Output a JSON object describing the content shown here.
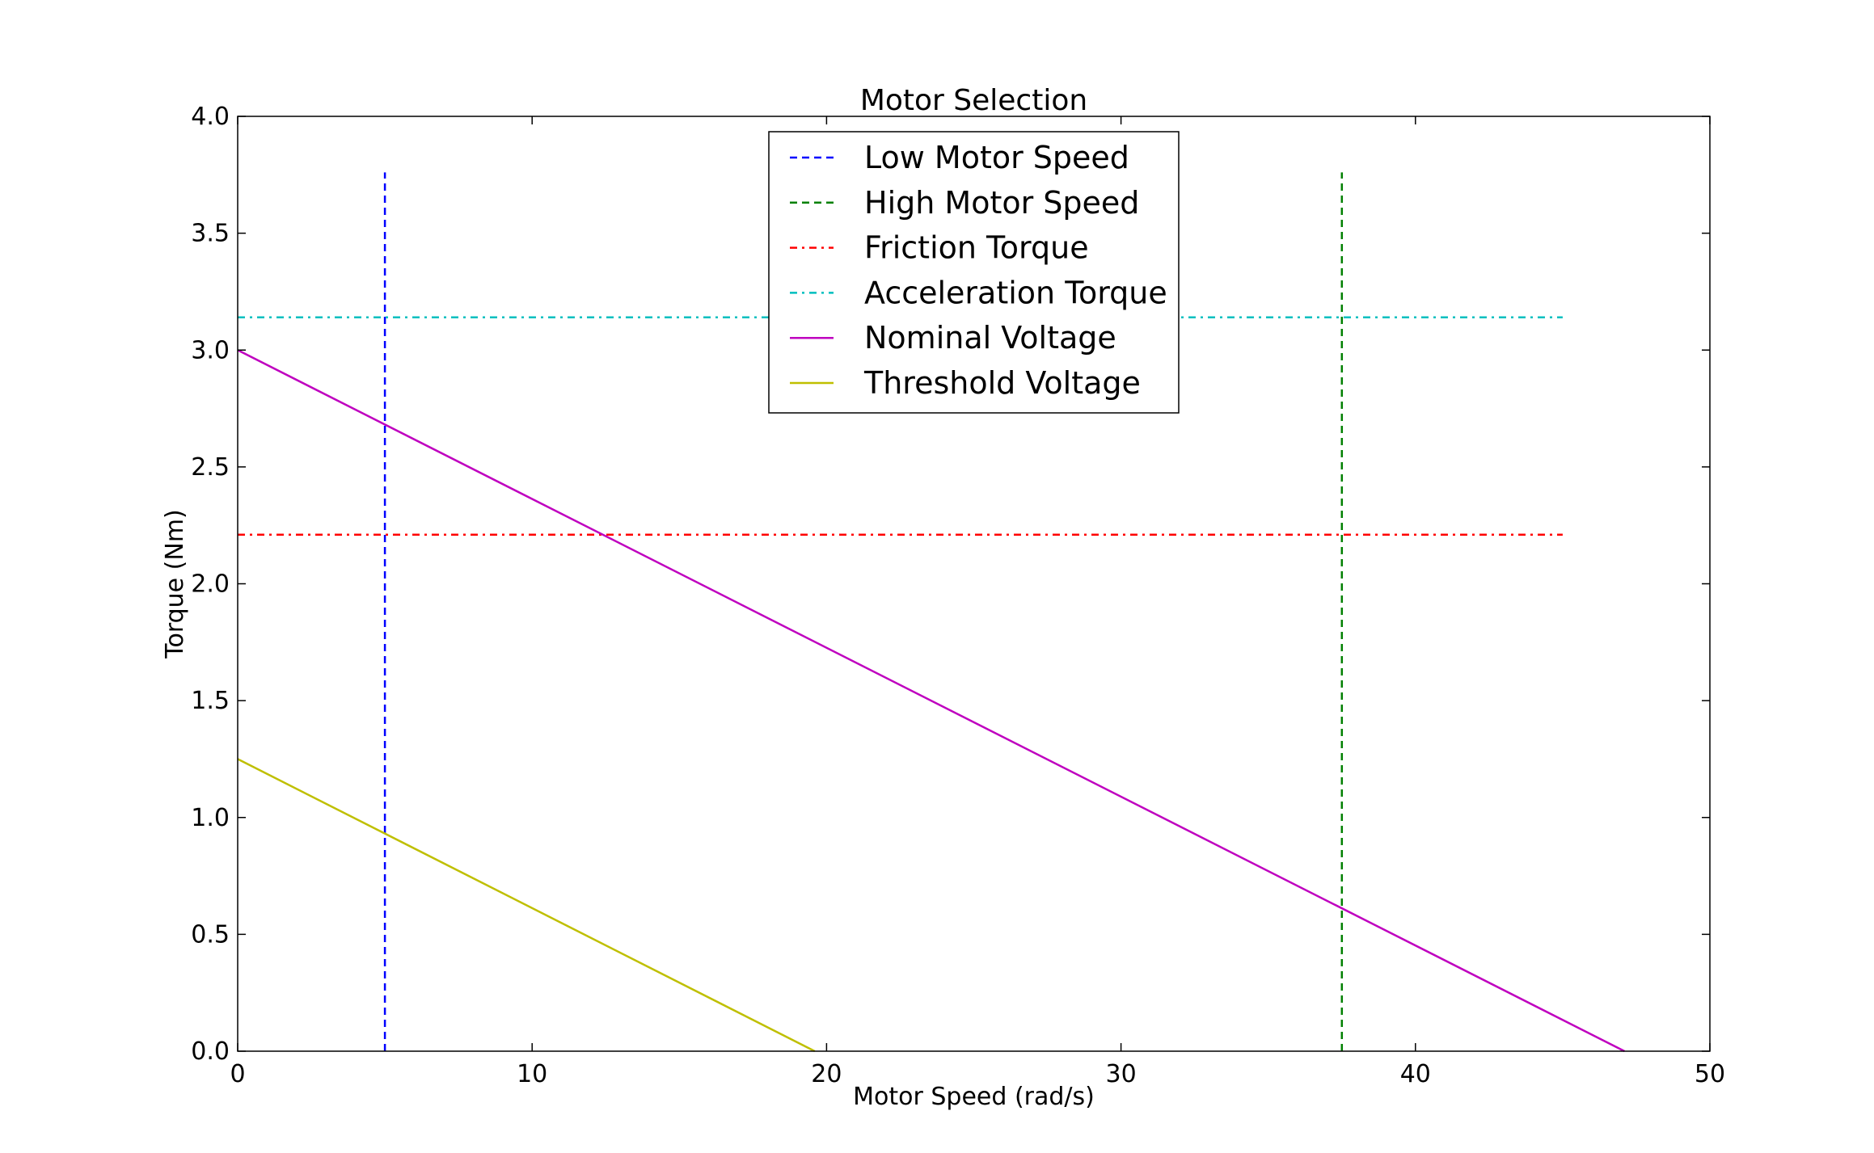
{
  "chart_data": {
    "type": "line",
    "title": "Motor Selection",
    "xlabel": "Motor Speed (rad/s)",
    "ylabel": "Torque (Nm)",
    "xlim": [
      0,
      50
    ],
    "ylim": [
      0,
      4.0
    ],
    "xticks": [
      0,
      10,
      20,
      30,
      40,
      50
    ],
    "xtick_labels": [
      "0",
      "10",
      "20",
      "30",
      "40",
      "50"
    ],
    "yticks": [
      0,
      0.5,
      1.0,
      1.5,
      2.0,
      2.5,
      3.0,
      3.5,
      4.0
    ],
    "ytick_labels": [
      "0.0",
      "0.5",
      "1.0",
      "1.5",
      "2.0",
      "2.5",
      "3.0",
      "3.5",
      "4.0"
    ],
    "grid": false,
    "legend_position": "top-center",
    "series": [
      {
        "name": "Low Motor Speed",
        "color": "#0000ff",
        "style": "dashed",
        "x": [
          5,
          5
        ],
        "y": [
          0,
          3.76
        ]
      },
      {
        "name": "High Motor Speed",
        "color": "#008000",
        "style": "dashed",
        "x": [
          37.5,
          37.5
        ],
        "y": [
          0,
          3.76
        ]
      },
      {
        "name": "Friction Torque",
        "color": "#ff0000",
        "style": "dashdot",
        "x": [
          0,
          45
        ],
        "y": [
          2.21,
          2.21
        ]
      },
      {
        "name": "Acceleration Torque",
        "color": "#00bfbf",
        "style": "dashdot",
        "x": [
          0,
          45
        ],
        "y": [
          3.14,
          3.14
        ]
      },
      {
        "name": "Nominal Voltage",
        "color": "#bf00bf",
        "style": "solid",
        "x": [
          0,
          47.1
        ],
        "y": [
          3.0,
          0
        ]
      },
      {
        "name": "Threshold Voltage",
        "color": "#bfbf00",
        "style": "solid",
        "x": [
          0,
          19.6
        ],
        "y": [
          1.25,
          0
        ]
      }
    ]
  }
}
